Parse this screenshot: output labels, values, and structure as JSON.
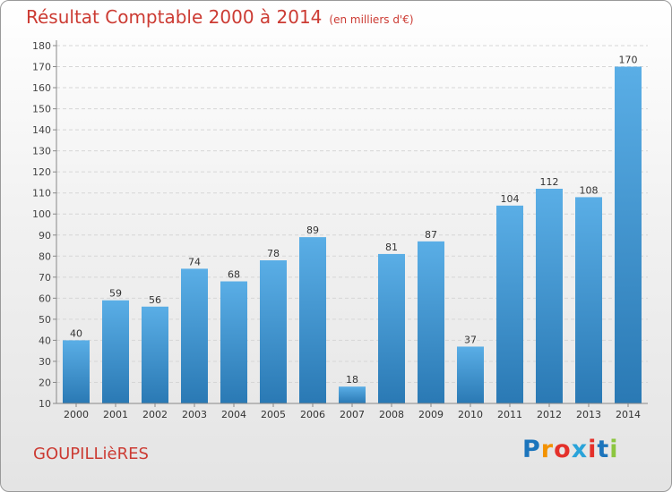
{
  "header": {
    "title": "Résultat Comptable 2000 à 2014",
    "subtitle": "(en milliers d'€)"
  },
  "footer": {
    "commune": "GOUPILLièRES",
    "logo": [
      "P",
      "r",
      "o",
      "x",
      "i",
      "t",
      "i"
    ],
    "logo_colors": [
      "#1c75bc",
      "#f39200",
      "#e4312b",
      "#2aa3d9",
      "#e4312b",
      "#1c75bc",
      "#8cc63f"
    ]
  },
  "chart_data": {
    "type": "bar",
    "title": "Résultat Comptable 2000 à 2014",
    "subtitle": "(en milliers d'€)",
    "categories": [
      "2000",
      "2001",
      "2002",
      "2003",
      "2004",
      "2005",
      "2006",
      "2007",
      "2008",
      "2009",
      "2010",
      "2011",
      "2012",
      "2013",
      "2014"
    ],
    "values": [
      40,
      59,
      56,
      74,
      68,
      78,
      89,
      18,
      81,
      87,
      37,
      104,
      112,
      108,
      170
    ],
    "ylim": [
      10,
      180
    ],
    "yticks": [
      10,
      20,
      30,
      40,
      50,
      60,
      70,
      80,
      90,
      100,
      110,
      120,
      130,
      140,
      150,
      160,
      170,
      180
    ],
    "xlabel": "",
    "ylabel": "",
    "grid": true,
    "bar_color_top": "#5aaee6",
    "bar_color_bottom": "#2a79b4"
  }
}
